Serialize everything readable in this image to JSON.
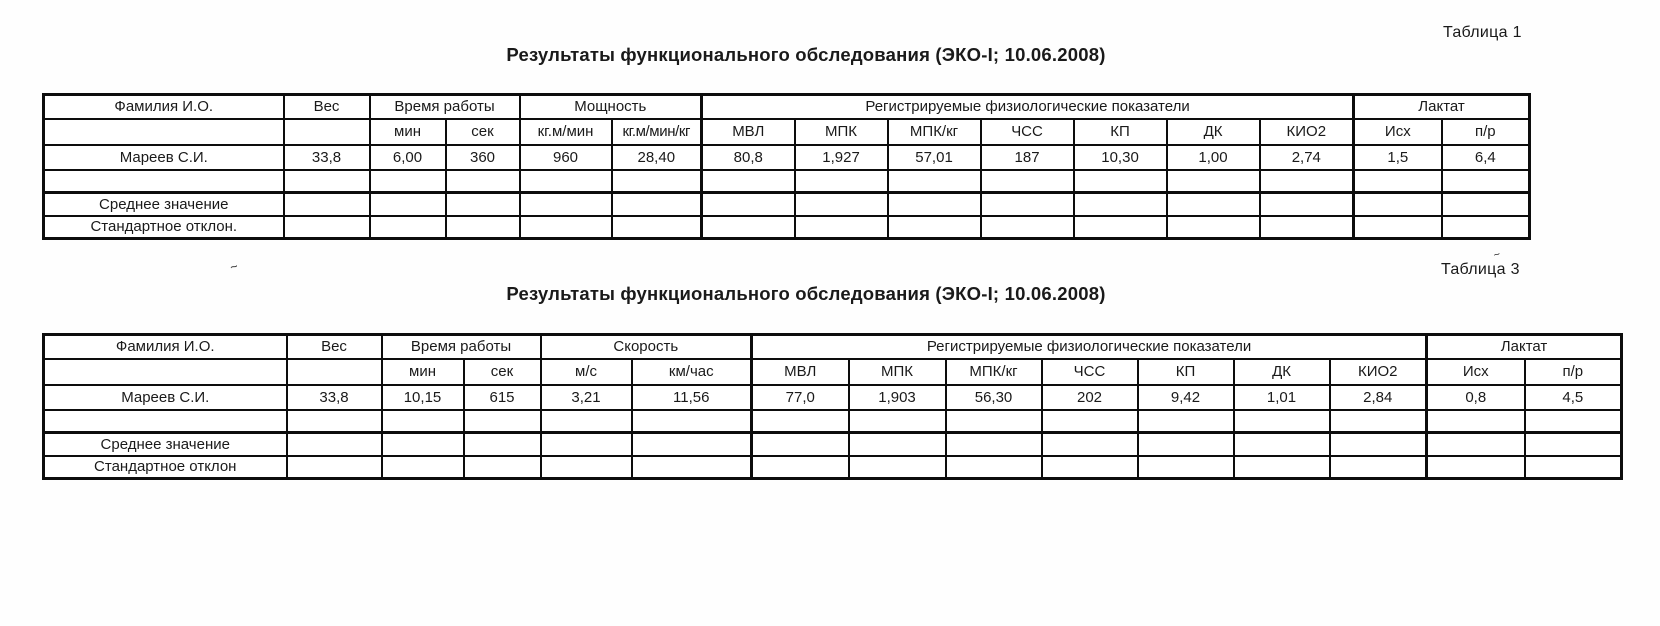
{
  "document": {
    "table1": {
      "caption": "Таблица 1",
      "title": "Результаты функционального обследования (ЭКО-I; 10.06.2008)",
      "groups": {
        "name": "Фамилия И.О.",
        "weight": "Вес",
        "time": "Время работы",
        "measure": "Мощность",
        "physio": "Регистрируемые физиологические показатели",
        "lactate": "Лактат"
      },
      "subheaders": [
        "мин",
        "сек",
        "кг.м/мин",
        "кг.м/мин/кг",
        "МВЛ",
        "МПК",
        "МПК/кг",
        "ЧСС",
        "КП",
        "ДК",
        "КИО2",
        "Исх",
        "п/р"
      ],
      "rows": [
        [
          "Мареев С.И.",
          "33,8",
          "6,00",
          "360",
          "960",
          "28,40",
          "80,8",
          "1,927",
          "57,01",
          "187",
          "10,30",
          "1,00",
          "2,74",
          "1,5",
          "6,4"
        ],
        [
          "",
          "",
          "",
          "",
          "",
          "",
          "",
          "",
          "",
          "",
          "",
          "",
          "",
          "",
          ""
        ]
      ],
      "summary_rows": [
        [
          "Среднее значение",
          "",
          "",
          "",
          "",
          "",
          "",
          "",
          "",
          "",
          "",
          "",
          "",
          "",
          ""
        ],
        [
          "Стандартное отклон.",
          "",
          "",
          "",
          "",
          "",
          "",
          "",
          "",
          "",
          "",
          "",
          "",
          "",
          ""
        ]
      ]
    },
    "table3": {
      "caption": "Таблица 3",
      "title": "Результаты функционального обследования (ЭКО-I; 10.06.2008)",
      "groups": {
        "name": "Фамилия И.О.",
        "weight": "Вес",
        "time": "Время работы",
        "measure": "Скорость",
        "physio": "Регистрируемые физиологические показатели",
        "lactate": "Лактат"
      },
      "subheaders": [
        "мин",
        "сек",
        "м/с",
        "км/час",
        "МВЛ",
        "МПК",
        "МПК/кг",
        "ЧСС",
        "КП",
        "ДК",
        "КИО2",
        "Исх",
        "п/р"
      ],
      "rows": [
        [
          "Мареев С.И.",
          "33,8",
          "10,15",
          "615",
          "3,21",
          "11,56",
          "77,0",
          "1,903",
          "56,30",
          "202",
          "9,42",
          "1,01",
          "2,84",
          "0,8",
          "4,5"
        ],
        [
          "",
          "",
          "",
          "",
          "",
          "",
          "",
          "",
          "",
          "",
          "",
          "",
          "",
          "",
          ""
        ]
      ],
      "summary_rows": [
        [
          "Среднее значение",
          "",
          "",
          "",
          "",
          "",
          "",
          "",
          "",
          "",
          "",
          "",
          "",
          "",
          ""
        ],
        [
          "Стандартное отклон",
          "",
          "",
          "",
          "",
          "",
          "",
          "",
          "",
          "",
          "",
          "",
          "",
          "",
          ""
        ]
      ]
    },
    "artifacts": {
      "mark1": "~",
      "mark2": "~"
    },
    "colors": {
      "ink": "#1a1a1a",
      "paper": "#ffffff",
      "line": "#0d0d0d"
    }
  }
}
